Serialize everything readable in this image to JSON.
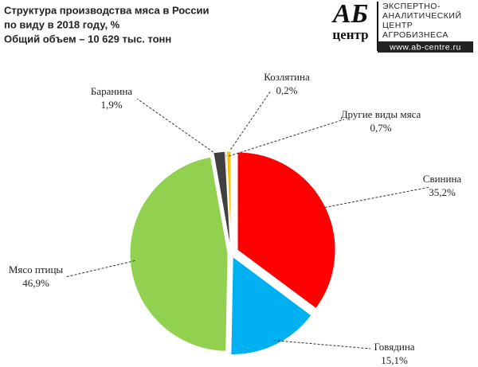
{
  "chart_data": {
    "type": "pie",
    "title": [
      "Структура производства  мяса в России",
      "по виду в 2018 году, %",
      "Общий объем – 10 629 тыс. тонн"
    ],
    "categories": [
      "Свинина",
      "Говядина",
      "Мясо птицы",
      "Баранина",
      "Козлятина",
      "Другие  виды мяса"
    ],
    "values": [
      35.2,
      15.1,
      46.9,
      1.9,
      0.2,
      0.7
    ],
    "value_labels": [
      "35,2%",
      "15,1%",
      "46,9%",
      "1,9%",
      "0,2%",
      "0,7%"
    ],
    "colors": [
      "#ff0000",
      "#00b0f0",
      "#92d050",
      "#404040",
      "#a6a6a6",
      "#ffc000"
    ]
  },
  "logo": {
    "mark": "АБ",
    "sub": "центр",
    "lines": [
      "ЭКСПЕРТНО-",
      "АНАЛИТИЧЕСКИЙ",
      "ЦЕНТР",
      "АГРОБИЗНЕСА"
    ],
    "url": "www.ab-centre.ru"
  }
}
